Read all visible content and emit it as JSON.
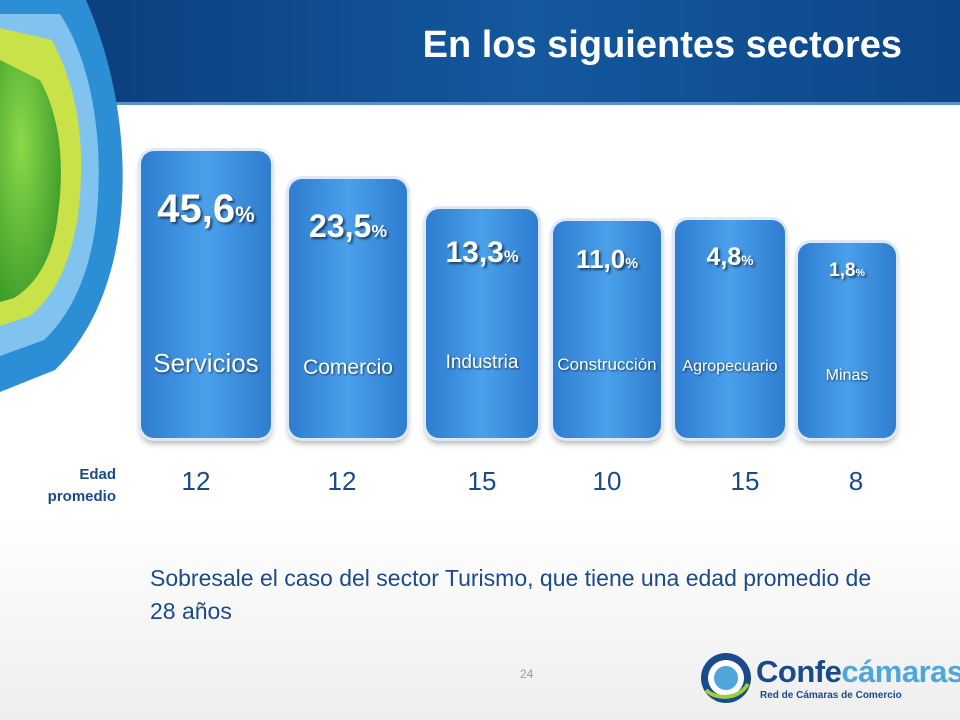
{
  "title": "En los siguientes sectores",
  "chart_data": {
    "type": "bar",
    "categories": [
      "Servicios",
      "Comercio",
      "Industria",
      "Construcción",
      "Agropecuario",
      "Minas"
    ],
    "values": [
      45.6,
      23.5,
      13.3,
      11.0,
      4.8,
      1.8
    ],
    "value_labels": [
      "45,6",
      "23,5",
      "13,3",
      "11,0",
      "4,8",
      "1,8"
    ],
    "value_unit": "%",
    "edad_promedio_label": "Edad promedio",
    "edad_promedio": [
      "12",
      "12",
      "15",
      "10",
      "15",
      "8"
    ]
  },
  "note": "Sobresale el caso del  sector Turismo,  que tiene una edad promedio de  28 años",
  "page_number": "24",
  "logo": {
    "name_part1": "Confe",
    "name_part2": "cámaras",
    "tagline": "Red de Cámaras de Comercio"
  },
  "colors": {
    "header": "#0d4688",
    "bar": "#3a8ad8",
    "text_blue": "#1a4a8a",
    "logo_accent": "#4ea6da"
  }
}
